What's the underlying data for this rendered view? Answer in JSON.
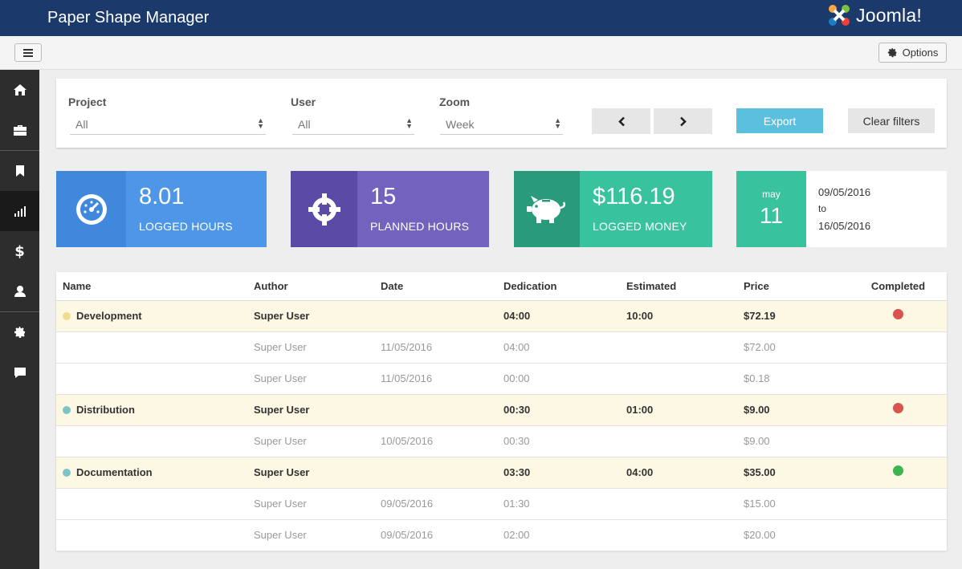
{
  "app": {
    "title": "Paper Shape Manager",
    "brand": "Joomla!"
  },
  "toolbar": {
    "options_label": "Options"
  },
  "sidebar": {
    "items": [
      {
        "icon": "home-icon"
      },
      {
        "icon": "briefcase-icon"
      },
      {
        "icon": "bookmark-icon"
      },
      {
        "icon": "bar-chart-icon",
        "active": true
      },
      {
        "icon": "dollar-icon"
      },
      {
        "icon": "user-icon"
      },
      {
        "icon": "gear-icon"
      },
      {
        "icon": "comment-icon"
      }
    ]
  },
  "filters": {
    "project": {
      "label": "Project",
      "value": "All"
    },
    "user": {
      "label": "User",
      "value": "All"
    },
    "zoom": {
      "label": "Zoom",
      "value": "Week"
    },
    "export_label": "Export",
    "clear_label": "Clear filters"
  },
  "stats": {
    "logged_hours": {
      "value": "8.01",
      "label": "LOGGED HOURS",
      "color": "#4e97e8"
    },
    "planned_hours": {
      "value": "15",
      "label": "PLANNED HOURS",
      "color": "#7462bf"
    },
    "logged_money": {
      "value": "$116.19",
      "label": "LOGGED MONEY",
      "color": "#38c29e"
    },
    "date": {
      "month": "may",
      "day": "11",
      "from": "09/05/2016",
      "to_label": "to",
      "to": "16/05/2016"
    }
  },
  "table": {
    "headers": [
      "Name",
      "Author",
      "Date",
      "Dedication",
      "Estimated",
      "Price",
      "Completed"
    ],
    "rows": [
      {
        "group": true,
        "name": "Development",
        "dot": "#f1dc8e",
        "author": "Super User",
        "date": "",
        "dedication": "04:00",
        "estimated": "10:00",
        "price": "$72.19",
        "status": "#d9534f"
      },
      {
        "group": false,
        "name": "",
        "author": "Super User",
        "date": "11/05/2016",
        "dedication": "04:00",
        "estimated": "",
        "price": "$72.00"
      },
      {
        "group": false,
        "name": "",
        "author": "Super User",
        "date": "11/05/2016",
        "dedication": "00:00",
        "estimated": "",
        "price": "$0.18"
      },
      {
        "group": true,
        "name": "Distribution",
        "dot": "#7dc4c4",
        "author": "Super User",
        "date": "",
        "dedication": "00:30",
        "estimated": "01:00",
        "price": "$9.00",
        "status": "#d9534f"
      },
      {
        "group": false,
        "name": "",
        "author": "Super User",
        "date": "10/05/2016",
        "dedication": "00:30",
        "estimated": "",
        "price": "$9.00"
      },
      {
        "group": true,
        "name": "Documentation",
        "dot": "#7dc4c4",
        "author": "Super User",
        "date": "",
        "dedication": "03:30",
        "estimated": "04:00",
        "price": "$35.00",
        "status": "#3fb34f"
      },
      {
        "group": false,
        "name": "",
        "author": "Super User",
        "date": "09/05/2016",
        "dedication": "01:30",
        "estimated": "",
        "price": "$15.00"
      },
      {
        "group": false,
        "name": "",
        "author": "Super User",
        "date": "09/05/2016",
        "dedication": "02:00",
        "estimated": "",
        "price": "$20.00"
      }
    ]
  }
}
